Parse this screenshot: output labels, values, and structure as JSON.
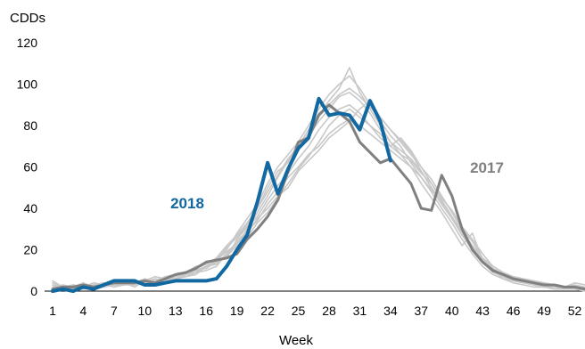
{
  "chart_data": {
    "type": "line",
    "title": "",
    "xlabel": "Week",
    "ylabel": "CDDs",
    "xlim": [
      1,
      53
    ],
    "ylim": [
      0,
      120
    ],
    "x_ticks": [
      1,
      4,
      7,
      10,
      13,
      16,
      19,
      22,
      25,
      28,
      31,
      34,
      37,
      40,
      43,
      46,
      49,
      52
    ],
    "y_ticks": [
      0,
      20,
      40,
      60,
      80,
      100,
      120
    ],
    "grid": false,
    "legend": "none",
    "series": [
      {
        "name": "2018",
        "color": "#1268a0",
        "x": [
          1,
          2,
          3,
          4,
          5,
          6,
          7,
          8,
          9,
          10,
          11,
          12,
          13,
          14,
          15,
          16,
          17,
          18,
          19,
          20,
          21,
          22,
          23,
          24,
          25,
          26,
          27,
          28,
          29,
          30,
          31,
          32,
          33,
          34
        ],
        "values": [
          0,
          1,
          0,
          2,
          1,
          3,
          5,
          5,
          5,
          3,
          3,
          4,
          5,
          5,
          5,
          5,
          6,
          12,
          20,
          27,
          43,
          62,
          47,
          59,
          69,
          74,
          93,
          85,
          86,
          85,
          78,
          92,
          82,
          63
        ]
      },
      {
        "name": "2017",
        "color": "#808080",
        "x": [
          1,
          2,
          3,
          4,
          5,
          6,
          7,
          8,
          9,
          10,
          11,
          12,
          13,
          14,
          15,
          16,
          17,
          18,
          19,
          20,
          21,
          22,
          23,
          24,
          25,
          26,
          27,
          28,
          29,
          30,
          31,
          32,
          33,
          34,
          35,
          36,
          37,
          38,
          39,
          40,
          41,
          42,
          43,
          44,
          45,
          46,
          47,
          48,
          49,
          50,
          51,
          52,
          53
        ],
        "values": [
          1,
          2,
          2,
          3,
          2,
          3,
          4,
          4,
          4,
          5,
          4,
          6,
          8,
          9,
          11,
          14,
          15,
          16,
          18,
          25,
          30,
          36,
          44,
          58,
          72,
          74,
          85,
          90,
          86,
          82,
          72,
          67,
          62,
          64,
          58,
          52,
          40,
          39,
          56,
          46,
          30,
          20,
          14,
          10,
          8,
          6,
          5,
          4,
          3,
          3,
          2,
          2,
          1
        ]
      },
      {
        "name": "",
        "color": "#c8c8c8",
        "x": [
          1,
          2,
          3,
          4,
          5,
          6,
          7,
          8,
          9,
          10,
          11,
          12,
          13,
          14,
          15,
          16,
          17,
          18,
          19,
          20,
          21,
          22,
          23,
          24,
          25,
          26,
          27,
          28,
          29,
          30,
          31,
          32,
          33,
          34,
          35,
          36,
          37,
          38,
          39,
          40,
          41,
          42,
          43,
          44,
          45,
          46,
          47,
          48,
          49,
          50,
          51,
          52,
          53
        ],
        "values": [
          2,
          1,
          3,
          2,
          4,
          3,
          2,
          5,
          3,
          4,
          6,
          5,
          7,
          9,
          10,
          12,
          15,
          20,
          28,
          35,
          42,
          52,
          60,
          66,
          72,
          80,
          88,
          95,
          100,
          104,
          98,
          90,
          82,
          75,
          70,
          62,
          55,
          48,
          40,
          33,
          25,
          18,
          12,
          8,
          6,
          4,
          3,
          2,
          2,
          1,
          1,
          1,
          0
        ]
      },
      {
        "name": "",
        "color": "#c8c8c8",
        "x": [
          1,
          2,
          3,
          4,
          5,
          6,
          7,
          8,
          9,
          10,
          11,
          12,
          13,
          14,
          15,
          16,
          17,
          18,
          19,
          20,
          21,
          22,
          23,
          24,
          25,
          26,
          27,
          28,
          29,
          30,
          31,
          32,
          33,
          34,
          35,
          36,
          37,
          38,
          39,
          40,
          41,
          42,
          43,
          44,
          45,
          46,
          47,
          48,
          49,
          50,
          51,
          52,
          53
        ],
        "values": [
          3,
          2,
          2,
          3,
          1,
          2,
          3,
          3,
          5,
          4,
          4,
          6,
          6,
          8,
          9,
          10,
          12,
          18,
          22,
          30,
          38,
          46,
          55,
          63,
          70,
          76,
          85,
          92,
          98,
          108,
          96,
          88,
          80,
          72,
          66,
          60,
          52,
          45,
          38,
          30,
          22,
          28,
          15,
          10,
          6,
          5,
          4,
          3,
          2,
          2,
          1,
          2,
          1
        ]
      },
      {
        "name": "",
        "color": "#c8c8c8",
        "x": [
          1,
          2,
          3,
          4,
          5,
          6,
          7,
          8,
          9,
          10,
          11,
          12,
          13,
          14,
          15,
          16,
          17,
          18,
          19,
          20,
          21,
          22,
          23,
          24,
          25,
          26,
          27,
          28,
          29,
          30,
          31,
          32,
          33,
          34,
          35,
          36,
          37,
          38,
          39,
          40,
          41,
          42,
          43,
          44,
          45,
          46,
          47,
          48,
          49,
          50,
          51,
          52,
          53
        ],
        "values": [
          1,
          3,
          1,
          2,
          3,
          2,
          4,
          3,
          4,
          6,
          5,
          7,
          8,
          9,
          12,
          13,
          16,
          22,
          27,
          33,
          40,
          50,
          58,
          62,
          68,
          75,
          82,
          88,
          94,
          96,
          92,
          86,
          78,
          72,
          68,
          64,
          58,
          50,
          42,
          35,
          28,
          20,
          14,
          9,
          7,
          5,
          4,
          3,
          3,
          2,
          2,
          1,
          1
        ]
      },
      {
        "name": "",
        "color": "#c8c8c8",
        "x": [
          1,
          2,
          3,
          4,
          5,
          6,
          7,
          8,
          9,
          10,
          11,
          12,
          13,
          14,
          15,
          16,
          17,
          18,
          19,
          20,
          21,
          22,
          23,
          24,
          25,
          26,
          27,
          28,
          29,
          30,
          31,
          32,
          33,
          34,
          35,
          36,
          37,
          38,
          39,
          40,
          41,
          42,
          43,
          44,
          45,
          46,
          47,
          48,
          49,
          50,
          51,
          52,
          53
        ],
        "values": [
          4,
          2,
          3,
          1,
          2,
          4,
          3,
          4,
          2,
          5,
          7,
          6,
          5,
          8,
          10,
          11,
          14,
          16,
          25,
          31,
          36,
          44,
          51,
          57,
          64,
          70,
          78,
          84,
          88,
          90,
          86,
          80,
          76,
          70,
          74,
          68,
          60,
          54,
          46,
          38,
          30,
          24,
          16,
          11,
          7,
          6,
          5,
          4,
          3,
          3,
          2,
          4,
          3
        ]
      },
      {
        "name": "",
        "color": "#c8c8c8",
        "x": [
          1,
          2,
          3,
          4,
          5,
          6,
          7,
          8,
          9,
          10,
          11,
          12,
          13,
          14,
          15,
          16,
          17,
          18,
          19,
          20,
          21,
          22,
          23,
          24,
          25,
          26,
          27,
          28,
          29,
          30,
          31,
          32,
          33,
          34,
          35,
          36,
          37,
          38,
          39,
          40,
          41,
          42,
          43,
          44,
          45,
          46,
          47,
          48,
          49,
          50,
          51,
          52,
          53
        ],
        "values": [
          2,
          3,
          2,
          2,
          3,
          3,
          5,
          4,
          3,
          4,
          3,
          5,
          6,
          7,
          9,
          12,
          13,
          18,
          24,
          29,
          34,
          42,
          48,
          55,
          60,
          66,
          70,
          76,
          80,
          83,
          80,
          76,
          72,
          68,
          64,
          60,
          55,
          49,
          43,
          36,
          29,
          22,
          16,
          12,
          9,
          7,
          6,
          5,
          4,
          3,
          2,
          3,
          2
        ]
      },
      {
        "name": "",
        "color": "#c8c8c8",
        "x": [
          1,
          2,
          3,
          4,
          5,
          6,
          7,
          8,
          9,
          10,
          11,
          12,
          13,
          14,
          15,
          16,
          17,
          18,
          19,
          20,
          21,
          22,
          23,
          24,
          25,
          26,
          27,
          28,
          29,
          30,
          31,
          32,
          33,
          34,
          35,
          36,
          37,
          38,
          39,
          40,
          41,
          42,
          43,
          44,
          45,
          46,
          47,
          48,
          49,
          50,
          51,
          52,
          53
        ],
        "values": [
          3,
          1,
          2,
          4,
          2,
          2,
          3,
          4,
          4,
          3,
          5,
          6,
          7,
          8,
          10,
          11,
          15,
          19,
          23,
          28,
          35,
          40,
          46,
          50,
          58,
          63,
          68,
          74,
          78,
          82,
          88,
          92,
          84,
          78,
          72,
          66,
          60,
          52,
          44,
          36,
          28,
          21,
          15,
          11,
          8,
          6,
          5,
          4,
          3,
          2,
          2,
          1,
          1
        ]
      },
      {
        "name": "",
        "color": "#c8c8c8",
        "x": [
          1,
          2,
          3,
          4,
          5,
          6,
          7,
          8,
          9,
          10,
          11,
          12,
          13,
          14,
          15,
          16,
          17,
          18,
          19,
          20,
          21,
          22,
          23,
          24,
          25,
          26,
          27,
          28,
          29,
          30,
          31,
          32,
          33,
          34,
          35,
          36,
          37,
          38,
          39,
          40,
          41,
          42,
          43,
          44,
          45,
          46,
          47,
          48,
          49,
          50,
          51,
          52,
          53
        ],
        "values": [
          1,
          2,
          3,
          2,
          3,
          4,
          2,
          3,
          5,
          4,
          6,
          5,
          8,
          9,
          11,
          13,
          16,
          21,
          26,
          32,
          40,
          48,
          56,
          64,
          70,
          78,
          86,
          90,
          95,
          98,
          94,
          89,
          84,
          78,
          73,
          67,
          58,
          50,
          43,
          35,
          27,
          20,
          14,
          10,
          7,
          5,
          4,
          3,
          2,
          2,
          1,
          1,
          0
        ]
      },
      {
        "name": "",
        "color": "#c8c8c8",
        "x": [
          1,
          2,
          3,
          4,
          5,
          6,
          7,
          8,
          9,
          10,
          11,
          12,
          13,
          14,
          15,
          16,
          17,
          18,
          19,
          20,
          21,
          22,
          23,
          24,
          25,
          26,
          27,
          28,
          29,
          30,
          31,
          32,
          33,
          34,
          35,
          36,
          37,
          38,
          39,
          40,
          41,
          42,
          43,
          44,
          45,
          46,
          47,
          48,
          49,
          50,
          51,
          52,
          53
        ],
        "values": [
          5,
          2,
          1,
          3,
          2,
          3,
          4,
          3,
          3,
          5,
          4,
          4,
          6,
          7,
          8,
          12,
          14,
          17,
          22,
          26,
          33,
          38,
          45,
          52,
          59,
          65,
          72,
          80,
          85,
          88,
          84,
          80,
          74,
          70,
          66,
          63,
          57,
          52,
          45,
          39,
          31,
          25,
          18,
          12,
          9,
          7,
          5,
          4,
          3,
          3,
          2,
          2,
          1
        ]
      }
    ],
    "annotations": [
      {
        "text": "2018",
        "color": "#1268a0"
      },
      {
        "text": "2017",
        "color": "#808080"
      }
    ]
  }
}
